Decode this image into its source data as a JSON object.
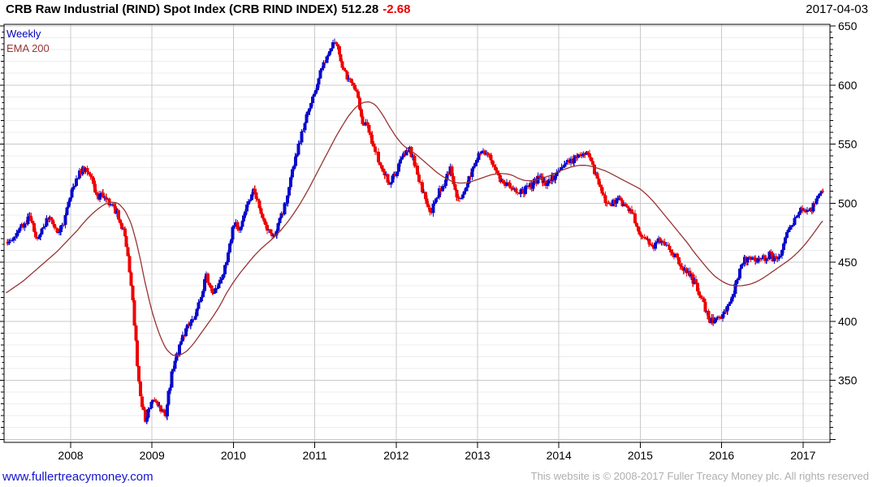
{
  "header": {
    "title": "CRB Raw Industrial (RIND) Spot Index (CRB RIND INDEX)",
    "last_price": "512.28",
    "change": "-2.68",
    "date": "2017-04-03"
  },
  "legend": {
    "weekly": "Weekly",
    "ema": "EMA 200"
  },
  "footer": {
    "website": "www.fullertreacymoney.com",
    "copyright": "This website is © 2008-2017 Fuller Treacy Money plc. All rights reserved"
  },
  "colors": {
    "up": "#0a0acc",
    "down": "#ee0000",
    "ema_line": "#993333",
    "change_negative": "#e80000",
    "grid_major": "#c9c9c9",
    "grid_minor": "#ededed",
    "axis": "#000000",
    "link_blue": "#1414cc",
    "copyright_gray": "#aeaeae"
  },
  "chart_data": {
    "type": "candlestick",
    "title": "CRB Raw Industrial (RIND) Spot Index (CRB RIND INDEX)",
    "frequency": "Weekly",
    "overlay": "EMA 200",
    "last_close": 512.28,
    "change": -2.68,
    "as_of_date": "2017-04-03",
    "x_ticks": [
      2008,
      2009,
      2010,
      2011,
      2012,
      2013,
      2014,
      2015,
      2016,
      2017
    ],
    "y_ticks": [
      350,
      400,
      450,
      500,
      550,
      600,
      650
    ],
    "y_range": [
      297,
      652
    ],
    "x_range_years": [
      2007.2,
      2017.33
    ],
    "grid": {
      "y_major_step": 50,
      "y_minor_step": 10,
      "y_tick_minor_step": 5
    },
    "legend_position": "top-left",
    "months": [
      "2007-03",
      "2007-04",
      "2007-05",
      "2007-06",
      "2007-07",
      "2007-08",
      "2007-09",
      "2007-10",
      "2007-11",
      "2007-12",
      "2008-01",
      "2008-02",
      "2008-03",
      "2008-04",
      "2008-05",
      "2008-06",
      "2008-07",
      "2008-08",
      "2008-09",
      "2008-10",
      "2008-11",
      "2008-12",
      "2009-01",
      "2009-02",
      "2009-03",
      "2009-04",
      "2009-05",
      "2009-06",
      "2009-07",
      "2009-08",
      "2009-09",
      "2009-10",
      "2009-11",
      "2009-12",
      "2010-01",
      "2010-02",
      "2010-03",
      "2010-04",
      "2010-05",
      "2010-06",
      "2010-07",
      "2010-08",
      "2010-09",
      "2010-10",
      "2010-11",
      "2010-12",
      "2011-01",
      "2011-02",
      "2011-03",
      "2011-04",
      "2011-05",
      "2011-06",
      "2011-07",
      "2011-08",
      "2011-09",
      "2011-10",
      "2011-11",
      "2011-12",
      "2012-01",
      "2012-02",
      "2012-03",
      "2012-04",
      "2012-05",
      "2012-06",
      "2012-07",
      "2012-08",
      "2012-09",
      "2012-10",
      "2012-11",
      "2012-12",
      "2013-01",
      "2013-02",
      "2013-03",
      "2013-04",
      "2013-05",
      "2013-06",
      "2013-07",
      "2013-08",
      "2013-09",
      "2013-10",
      "2013-11",
      "2013-12",
      "2014-01",
      "2014-02",
      "2014-03",
      "2014-04",
      "2014-05",
      "2014-06",
      "2014-07",
      "2014-08",
      "2014-09",
      "2014-10",
      "2014-11",
      "2014-12",
      "2015-01",
      "2015-02",
      "2015-03",
      "2015-04",
      "2015-05",
      "2015-06",
      "2015-07",
      "2015-08",
      "2015-09",
      "2015-10",
      "2015-11",
      "2015-12",
      "2016-01",
      "2016-02",
      "2016-03",
      "2016-04",
      "2016-05",
      "2016-06",
      "2016-07",
      "2016-08",
      "2016-09",
      "2016-10",
      "2016-11",
      "2016-12",
      "2017-01",
      "2017-02",
      "2017-03",
      "2017-04"
    ],
    "series": [
      {
        "name": "Weekly",
        "type": "candlestick",
        "color_up": "#0a0acc",
        "color_down": "#ee0000",
        "monthly_close": [
          465,
          469,
          474,
          481,
          490,
          468,
          482,
          488,
          476,
          482,
          508,
          524,
          529,
          521,
          506,
          508,
          498,
          490,
          472,
          430,
          350,
          314,
          335,
          328,
          322,
          358,
          378,
          394,
          400,
          417,
          438,
          425,
          433,
          448,
          483,
          478,
          496,
          511,
          492,
          477,
          472,
          487,
          507,
          534,
          557,
          578,
          593,
          613,
          628,
          640,
          616,
          605,
          596,
          570,
          562,
          543,
          528,
          516,
          526,
          540,
          546,
          529,
          509,
          491,
          505,
          516,
          529,
          500,
          507,
          524,
          539,
          545,
          536,
          523,
          517,
          513,
          511,
          511,
          515,
          521,
          517,
          521,
          527,
          532,
          536,
          542,
          543,
          531,
          513,
          501,
          500,
          502,
          498,
          489,
          473,
          467,
          464,
          470,
          464,
          457,
          446,
          441,
          433,
          420,
          403,
          398,
          405,
          415,
          429,
          449,
          455,
          450,
          452,
          456,
          452,
          461,
          482,
          487,
          496,
          492,
          505,
          512.28
        ]
      },
      {
        "name": "EMA 200",
        "type": "line",
        "color": "#993333",
        "monthly": [
          422,
          426,
          430,
          434,
          439,
          444,
          449,
          454,
          459,
          465,
          471,
          477,
          484,
          490,
          495,
          499,
          501,
          500,
          494,
          482,
          460,
          432,
          408,
          390,
          377,
          371,
          371,
          374,
          380,
          388,
          396,
          404,
          413,
          424,
          433,
          441,
          448,
          455,
          461,
          466,
          471,
          477,
          484,
          492,
          501,
          511,
          522,
          533,
          544,
          555,
          565,
          574,
          581,
          585,
          586,
          583,
          575,
          565,
          556,
          549,
          545,
          541,
          536,
          531,
          526,
          522,
          519,
          517,
          517,
          518,
          520,
          522,
          524,
          525,
          525,
          524,
          521,
          519,
          519,
          520,
          522,
          524,
          527,
          529,
          531,
          532,
          532,
          531,
          529,
          527,
          524,
          521,
          518,
          515,
          512,
          507,
          501,
          494,
          487,
          480,
          473,
          466,
          458,
          451,
          444,
          438,
          434,
          431,
          430,
          430,
          431,
          433,
          436,
          440,
          444,
          448,
          452,
          457,
          463,
          470,
          478,
          486
        ]
      }
    ]
  }
}
